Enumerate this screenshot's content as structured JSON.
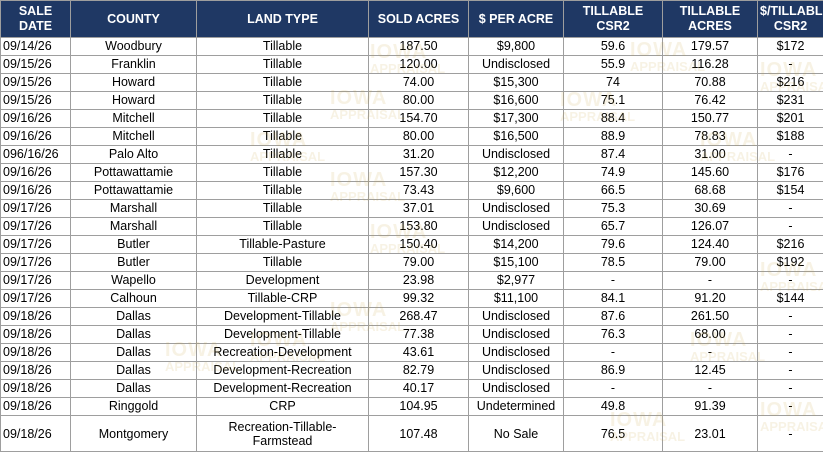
{
  "table": {
    "columns": [
      "SALE DATE",
      "COUNTY",
      "LAND TYPE",
      "SOLD ACRES",
      "$ PER ACRE",
      "TILLABLE CSR2",
      "TILLABLE ACRES",
      "$/TILLABLE CSR2"
    ],
    "rows": [
      [
        "09/14/26",
        "Woodbury",
        "Tillable",
        "187.50",
        "$9,800",
        "59.6",
        "179.57",
        "$172"
      ],
      [
        "09/15/26",
        "Franklin",
        "Tillable",
        "120.00",
        "Undisclosed",
        "55.9",
        "116.28",
        "-"
      ],
      [
        "09/15/26",
        "Howard",
        "Tillable",
        "74.00",
        "$15,300",
        "74",
        "70.88",
        "$216"
      ],
      [
        "09/15/26",
        "Howard",
        "Tillable",
        "80.00",
        "$16,600",
        "75.1",
        "76.42",
        "$231"
      ],
      [
        "09/16/26",
        "Mitchell",
        "Tillable",
        "154.70",
        "$17,300",
        "88.4",
        "150.77",
        "$201"
      ],
      [
        "09/16/26",
        "Mitchell",
        "Tillable",
        "80.00",
        "$16,500",
        "88.9",
        "78.83",
        "$188"
      ],
      [
        "096/16/26",
        "Palo Alto",
        "Tillable",
        "31.20",
        "Undisclosed",
        "87.4",
        "31.00",
        "-"
      ],
      [
        "09/16/26",
        "Pottawattamie",
        "Tillable",
        "157.30",
        "$12,200",
        "74.9",
        "145.60",
        "$176"
      ],
      [
        "09/16/26",
        "Pottawattamie",
        "Tillable",
        "73.43",
        "$9,600",
        "66.5",
        "68.68",
        "$154"
      ],
      [
        "09/17/26",
        "Marshall",
        "Tillable",
        "37.01",
        "Undisclosed",
        "75.3",
        "30.69",
        "-"
      ],
      [
        "09/17/26",
        "Marshall",
        "Tillable",
        "153.80",
        "Undisclosed",
        "65.7",
        "126.07",
        "-"
      ],
      [
        "09/17/26",
        "Butler",
        "Tillable-Pasture",
        "150.40",
        "$14,200",
        "79.6",
        "124.40",
        "$216"
      ],
      [
        "09/17/26",
        "Butler",
        "Tillable",
        "79.00",
        "$15,100",
        "78.5",
        "79.00",
        "$192"
      ],
      [
        "09/17/26",
        "Wapello",
        "Development",
        "23.98",
        "$2,977",
        "-",
        "-",
        "-"
      ],
      [
        "09/17/26",
        "Calhoun",
        "Tillable-CRP",
        "99.32",
        "$11,100",
        "84.1",
        "91.20",
        "$144"
      ],
      [
        "09/18/26",
        "Dallas",
        "Development-Tillable",
        "268.47",
        "Undisclosed",
        "87.6",
        "261.50",
        "-"
      ],
      [
        "09/18/26",
        "Dallas",
        "Development-Tillable",
        "77.38",
        "Undisclosed",
        "76.3",
        "68.00",
        "-"
      ],
      [
        "09/18/26",
        "Dallas",
        "Recreation-Development",
        "43.61",
        "Undisclosed",
        "-",
        "-",
        "-"
      ],
      [
        "09/18/26",
        "Dallas",
        "Development-Recreation",
        "82.79",
        "Undisclosed",
        "86.9",
        "12.45",
        "-"
      ],
      [
        "09/18/26",
        "Dallas",
        "Development-Recreation",
        "40.17",
        "Undisclosed",
        "-",
        "-",
        "-"
      ],
      [
        "09/18/26",
        "Ringgold",
        "CRP",
        "104.95",
        "Undetermined",
        "49.8",
        "91.39",
        "-"
      ],
      [
        "09/18/26",
        "Montgomery",
        "Recreation-Tillable-Farmstead",
        "107.48",
        "No Sale",
        "76.5",
        "23.01",
        "-"
      ]
    ]
  },
  "watermark": {
    "line1": "IOWA",
    "line2": "APPRAISAL",
    "color": "#c9a23a"
  },
  "colors": {
    "header_bg": "#1f3864",
    "header_text": "#ffffff",
    "grid": "#9e9e9e"
  }
}
